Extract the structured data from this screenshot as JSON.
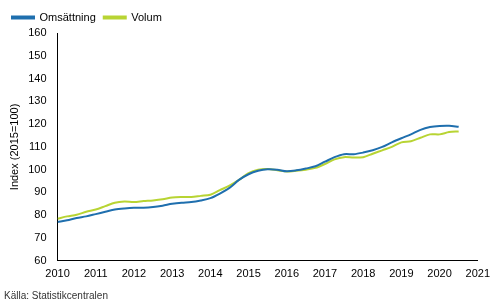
{
  "chart_data": {
    "type": "line",
    "y_label": "Index (2015=100)",
    "caption": "Källa: Statistikcentralen",
    "x": [
      2010,
      2010.25,
      2010.5,
      2010.75,
      2011,
      2011.25,
      2011.5,
      2011.75,
      2012,
      2012.25,
      2012.5,
      2012.75,
      2013,
      2013.25,
      2013.5,
      2013.75,
      2014,
      2014.25,
      2014.5,
      2014.75,
      2015,
      2015.25,
      2015.5,
      2015.75,
      2016,
      2016.25,
      2016.5,
      2016.75,
      2017,
      2017.25,
      2017.5,
      2017.75,
      2018,
      2018.25,
      2018.5,
      2018.75,
      2019,
      2019.25,
      2019.5,
      2019.75,
      2020,
      2020.25,
      2020.5
    ],
    "series": [
      {
        "name": "Omsättning",
        "color": "#1f6fae",
        "values": [
          77,
          77.8,
          78.8,
          79.5,
          80.5,
          81.5,
          82.5,
          83,
          83.3,
          83.3,
          83.6,
          84.2,
          85,
          85.5,
          85.8,
          86.5,
          87.5,
          89.5,
          92,
          95.5,
          98,
          99.5,
          100.2,
          100,
          99.3,
          99.7,
          100.5,
          101.5,
          103.5,
          105.5,
          106.8,
          106.8,
          107.5,
          108.5,
          110,
          112,
          113.8,
          115.5,
          117.5,
          118.7,
          119.2,
          119.3,
          118.8
        ]
      },
      {
        "name": "Volum",
        "color": "#b8d433",
        "values": [
          78.5,
          79.5,
          80.2,
          81.5,
          82.5,
          84,
          85.5,
          86,
          85.8,
          86.2,
          86.5,
          87,
          87.8,
          88,
          88,
          88.5,
          89,
          91,
          93,
          95.5,
          98.5,
          100,
          100.3,
          99.8,
          99.2,
          99.5,
          100,
          100.8,
          102.5,
          104.5,
          105.5,
          105.3,
          105.5,
          107,
          108.5,
          110,
          112,
          112.5,
          114,
          115.5,
          115.5,
          116.5,
          116.8
        ]
      }
    ],
    "xlim": [
      2010,
      2021
    ],
    "xticks": [
      2010,
      2011,
      2012,
      2013,
      2014,
      2015,
      2016,
      2017,
      2018,
      2019,
      2020,
      2021
    ],
    "ylim": [
      60,
      160
    ],
    "yticks": [
      60,
      70,
      80,
      90,
      100,
      110,
      120,
      130,
      140,
      150,
      160
    ],
    "grid": false,
    "legend": "upper left"
  }
}
